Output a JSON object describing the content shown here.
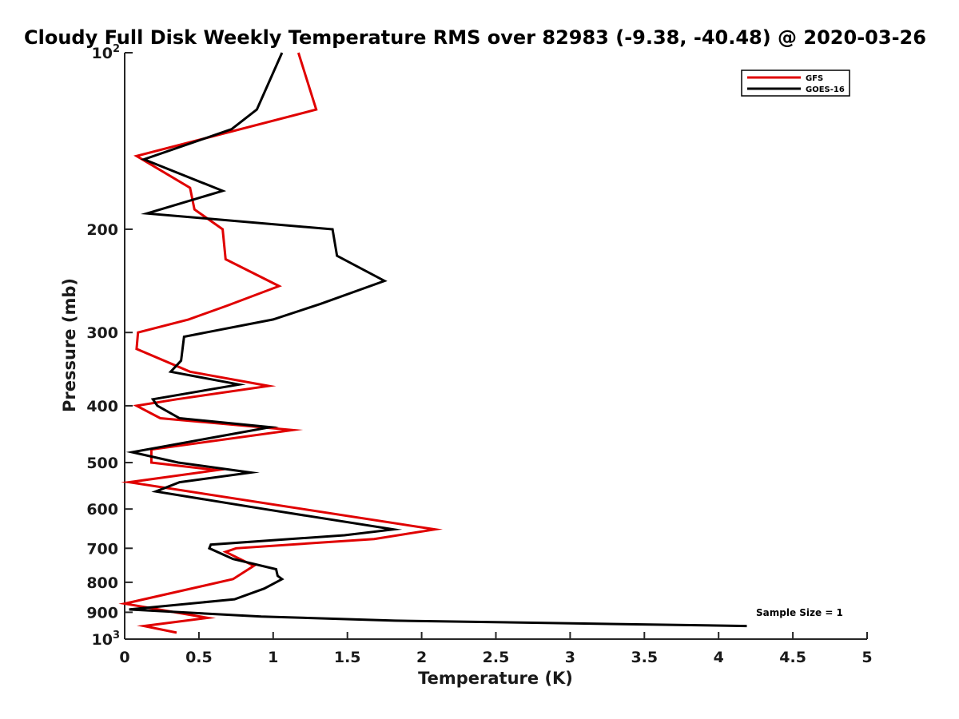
{
  "chart_data": {
    "type": "line",
    "title": "Cloudy Full Disk Weekly Temperature RMS over 82983 (-9.38, -40.48) @ 2020-03-26",
    "xlabel": "Temperature (K)",
    "ylabel": "Pressure (mb)",
    "xlim": [
      0,
      5
    ],
    "ylim": [
      100,
      1000
    ],
    "y_scale": "log",
    "y_reversed": true,
    "x_ticks": [
      "0",
      "0.5",
      "1",
      "1.5",
      "2",
      "2.5",
      "3",
      "3.5",
      "4",
      "4.5",
      "5"
    ],
    "x_tick_values": [
      0,
      0.5,
      1,
      1.5,
      2,
      2.5,
      3,
      3.5,
      4,
      4.5,
      5
    ],
    "y_ticks": [
      {
        "value": 100,
        "label": "10",
        "sup": "2"
      },
      {
        "value": 200,
        "label": "200",
        "sup": ""
      },
      {
        "value": 300,
        "label": "300",
        "sup": ""
      },
      {
        "value": 400,
        "label": "400",
        "sup": ""
      },
      {
        "value": 500,
        "label": "500",
        "sup": ""
      },
      {
        "value": 600,
        "label": "600",
        "sup": ""
      },
      {
        "value": 700,
        "label": "700",
        "sup": ""
      },
      {
        "value": 800,
        "label": "800",
        "sup": ""
      },
      {
        "value": 900,
        "label": "900",
        "sup": ""
      },
      {
        "value": 1000,
        "label": "10",
        "sup": "3"
      }
    ],
    "legend_position": "top-right",
    "grid": false,
    "series": [
      {
        "name": "GFS",
        "color": "#e00000",
        "points": [
          [
            1.17,
            100
          ],
          [
            1.29,
            125
          ],
          [
            0.08,
            150
          ],
          [
            0.44,
            170
          ],
          [
            0.47,
            185
          ],
          [
            0.66,
            200
          ],
          [
            0.68,
            225
          ],
          [
            1.04,
            250
          ],
          [
            0.69,
            270
          ],
          [
            0.43,
            285
          ],
          [
            0.09,
            300
          ],
          [
            0.08,
            320
          ],
          [
            0.44,
            350
          ],
          [
            0.97,
            370
          ],
          [
            0.35,
            390
          ],
          [
            0.08,
            400
          ],
          [
            0.24,
            420
          ],
          [
            1.13,
            440
          ],
          [
            0.18,
            475
          ],
          [
            0.18,
            500
          ],
          [
            0.62,
            515
          ],
          [
            0.03,
            540
          ],
          [
            1.2,
            600
          ],
          [
            2.09,
            650
          ],
          [
            1.68,
            675
          ],
          [
            0.75,
            700
          ],
          [
            0.68,
            710
          ],
          [
            0.87,
            750
          ],
          [
            0.73,
            790
          ],
          [
            0.0,
            870
          ],
          [
            0.56,
            920
          ],
          [
            0.13,
            950
          ],
          [
            0.35,
            975
          ]
        ]
      },
      {
        "name": "GOES-16",
        "color": "#000000",
        "points": [
          [
            1.06,
            100
          ],
          [
            0.89,
            125
          ],
          [
            0.72,
            135
          ],
          [
            0.13,
            152
          ],
          [
            0.66,
            172
          ],
          [
            0.15,
            188
          ],
          [
            1.4,
            200
          ],
          [
            1.43,
            222
          ],
          [
            1.75,
            245
          ],
          [
            1.32,
            268
          ],
          [
            1.0,
            285
          ],
          [
            0.4,
            305
          ],
          [
            0.38,
            335
          ],
          [
            0.31,
            350
          ],
          [
            0.77,
            368
          ],
          [
            0.19,
            390
          ],
          [
            0.22,
            400
          ],
          [
            0.37,
            420
          ],
          [
            0.98,
            435
          ],
          [
            0.05,
            480
          ],
          [
            0.36,
            500
          ],
          [
            0.85,
            520
          ],
          [
            0.37,
            540
          ],
          [
            0.21,
            560
          ],
          [
            0.94,
            600
          ],
          [
            1.81,
            650
          ],
          [
            1.48,
            665
          ],
          [
            0.58,
            690
          ],
          [
            0.57,
            700
          ],
          [
            0.73,
            730
          ],
          [
            1.02,
            760
          ],
          [
            1.03,
            780
          ],
          [
            1.06,
            790
          ],
          [
            0.94,
            820
          ],
          [
            0.74,
            855
          ],
          [
            0.03,
            890
          ],
          [
            0.92,
            915
          ],
          [
            1.82,
            930
          ],
          [
            4.19,
            950
          ]
        ]
      }
    ],
    "annotation": "Sample Size = 1"
  }
}
